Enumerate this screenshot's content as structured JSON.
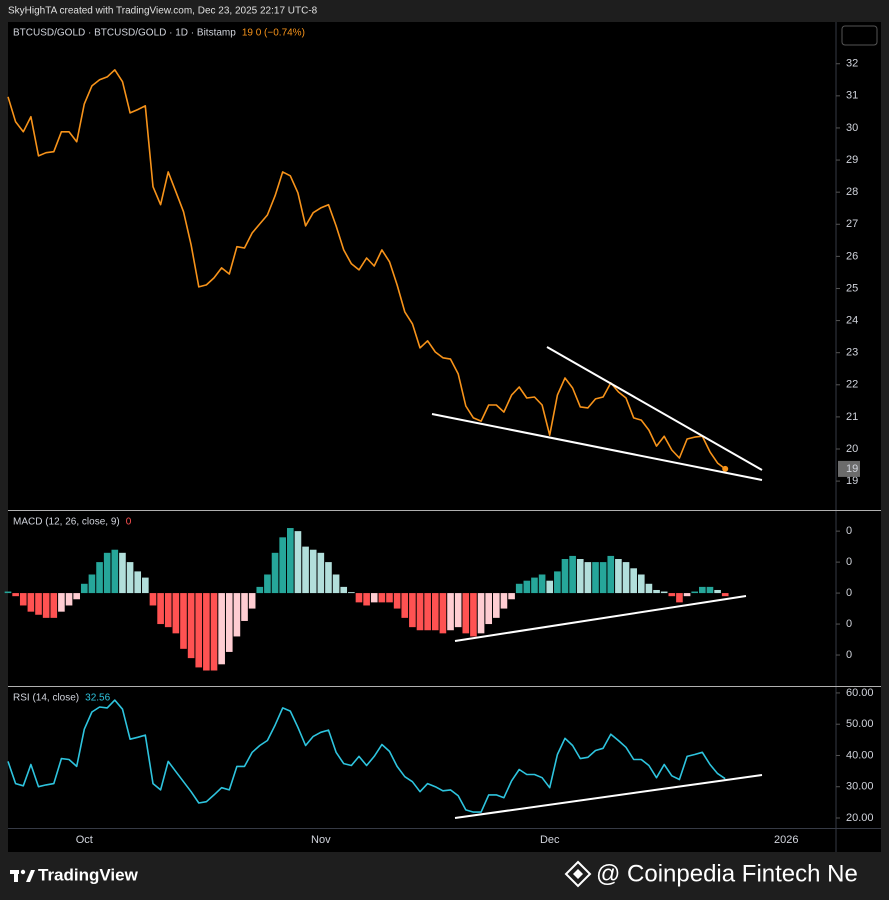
{
  "header": {
    "credit": "SkyHighTA created with TradingView.com, Dec 23, 2025 22:17 UTC-8"
  },
  "chart_data": [
    {
      "type": "line",
      "title": "BTCUSD/GOLD · BTCUSD/GOLD · 1D · Bitstamp",
      "title_value": "19  0 (−0.74%)",
      "color": "#f7931a",
      "price_label": 19,
      "grid": false,
      "categories": [
        null,
        null,
        null,
        null,
        null,
        null,
        null,
        null,
        null,
        null,
        "Oct",
        null,
        null,
        null,
        null,
        null,
        null,
        null,
        null,
        null,
        null,
        null,
        null,
        null,
        null,
        null,
        null,
        null,
        null,
        null,
        null,
        null,
        null,
        null,
        null,
        null,
        null,
        null,
        null,
        null,
        null,
        "Nov",
        null,
        null,
        null,
        null,
        null,
        null,
        null,
        null,
        null,
        null,
        null,
        null,
        null,
        null,
        null,
        null,
        null,
        null,
        null,
        null,
        null,
        null,
        null,
        null,
        null,
        null,
        null,
        null,
        null,
        "Dec",
        null,
        null,
        null,
        null,
        null,
        null,
        null,
        null,
        null,
        null,
        null,
        null,
        null,
        null,
        null,
        null,
        null,
        null,
        null,
        null,
        null,
        null,
        null,
        null,
        null,
        null,
        null,
        null,
        null,
        null,
        "2026"
      ],
      "values": [
        30.97,
        30.19,
        29.88,
        30.35,
        29.13,
        29.23,
        29.26,
        29.88,
        29.88,
        29.57,
        30.75,
        31.31,
        31.5,
        31.59,
        31.81,
        31.44,
        30.47,
        30.57,
        30.69,
        28.17,
        27.61,
        28.63,
        28.01,
        27.39,
        26.36,
        25.05,
        25.11,
        25.33,
        25.64,
        25.45,
        26.3,
        26.26,
        26.73,
        27.01,
        27.29,
        27.89,
        28.63,
        28.51,
        27.98,
        26.95,
        27.36,
        27.51,
        27.61,
        26.95,
        26.2,
        25.77,
        25.58,
        25.95,
        25.7,
        26.2,
        25.83,
        25.11,
        24.27,
        23.9,
        23.15,
        23.37,
        23.02,
        22.84,
        22.8,
        22.34,
        21.34,
        20.97,
        20.87,
        21.37,
        21.37,
        21.15,
        21.68,
        21.93,
        21.59,
        21.62,
        21.37,
        20.43,
        21.68,
        22.21,
        21.9,
        21.31,
        21.28,
        21.56,
        21.62,
        22.06,
        21.78,
        21.59,
        20.97,
        20.9,
        20.59,
        20.09,
        20.4,
        19.97,
        19.72,
        20.31,
        20.37,
        20.4,
        19.91,
        19.56,
        19.38,
        null,
        null,
        null,
        null,
        null,
        null,
        null,
        null
      ],
      "ylim": [
        18.1,
        33.3
      ],
      "yticks": [
        19,
        20,
        21,
        22,
        23,
        24,
        25,
        26,
        27,
        28,
        29,
        30,
        31,
        32
      ]
    },
    {
      "type": "bar",
      "title": "MACD (12, 26, close, 9)",
      "title_value": "0",
      "grid": false,
      "colors": {
        "up_rising": "#26a69a",
        "up_falling": "#b2dfdb",
        "down_falling": "#ff5252",
        "down_rising": "#ffcdd2"
      },
      "values": [
        0.005,
        -0.01,
        -0.04,
        -0.06,
        -0.07,
        -0.08,
        -0.08,
        -0.06,
        -0.04,
        -0.02,
        0.03,
        0.06,
        0.1,
        0.13,
        0.14,
        0.13,
        0.1,
        0.07,
        0.05,
        -0.04,
        -0.1,
        -0.11,
        -0.13,
        -0.18,
        -0.21,
        -0.24,
        -0.25,
        -0.25,
        -0.23,
        -0.19,
        -0.14,
        -0.09,
        -0.05,
        0.02,
        0.06,
        0.13,
        0.18,
        0.21,
        0.2,
        0.15,
        0.14,
        0.13,
        0.1,
        0.06,
        0.02,
        0.003,
        -0.03,
        -0.04,
        -0.03,
        -0.03,
        -0.03,
        -0.05,
        -0.08,
        -0.11,
        -0.12,
        -0.12,
        -0.12,
        -0.13,
        -0.12,
        -0.11,
        -0.13,
        -0.14,
        -0.13,
        -0.1,
        -0.08,
        -0.05,
        -0.02,
        0.03,
        0.04,
        0.05,
        0.06,
        0.04,
        0.07,
        0.11,
        0.12,
        0.11,
        0.1,
        0.1,
        0.1,
        0.12,
        0.11,
        0.1,
        0.08,
        0.06,
        0.03,
        0.01,
        0.005,
        -0.01,
        -0.03,
        -0.01,
        0.005,
        0.02,
        0.02,
        0.01,
        -0.01,
        null,
        null,
        null,
        null,
        null,
        null,
        null,
        null
      ],
      "ylim": [
        -0.3,
        0.265
      ],
      "yticks": [
        {
          "value": 0.2,
          "label": "0"
        },
        {
          "value": 0.1,
          "label": "0"
        },
        {
          "value": 0,
          "label": "0"
        },
        {
          "value": -0.1,
          "label": "0"
        },
        {
          "value": -0.2,
          "label": "0"
        }
      ]
    },
    {
      "type": "line",
      "title": "RSI (14, close)",
      "color": "#2ec4de",
      "grid": false,
      "values": [
        38.1,
        31.0,
        30.3,
        37.1,
        30.0,
        30.6,
        31.0,
        39.0,
        38.7,
        36.5,
        48.4,
        53.9,
        55.5,
        55.2,
        57.7,
        54.8,
        45.2,
        45.8,
        46.5,
        31.0,
        29.0,
        38.1,
        34.8,
        31.6,
        28.4,
        24.8,
        25.2,
        27.4,
        29.7,
        29.0,
        36.5,
        36.5,
        41.0,
        43.2,
        44.8,
        49.7,
        55.2,
        54.2,
        49.0,
        43.2,
        46.1,
        47.4,
        48.1,
        41.0,
        37.4,
        36.8,
        39.7,
        36.8,
        39.7,
        43.5,
        41.3,
        36.5,
        33.2,
        31.6,
        28.4,
        31.0,
        30.0,
        28.7,
        29.0,
        27.1,
        22.6,
        21.9,
        21.9,
        27.4,
        27.4,
        26.5,
        31.9,
        35.5,
        33.9,
        33.9,
        32.9,
        29.7,
        40.3,
        45.5,
        43.2,
        39.0,
        39.4,
        41.6,
        42.3,
        46.8,
        44.8,
        42.6,
        38.7,
        38.7,
        36.8,
        32.9,
        37.1,
        33.5,
        32.3,
        39.7,
        40.3,
        41.0,
        37.1,
        34.2,
        32.56,
        null,
        null,
        null,
        null,
        null,
        null,
        null,
        null
      ],
      "ylim": [
        16.8,
        61.9
      ],
      "yticks": [
        {
          "value": 60,
          "label": "60.00"
        },
        {
          "value": 50,
          "label": "50.00"
        },
        {
          "value": 40,
          "label": "40.00"
        },
        {
          "value": 30,
          "label": "30.00"
        },
        {
          "value": 20,
          "label": "20.00"
        }
      ]
    }
  ],
  "footer": {
    "brand": "TradingView",
    "watermark": "@ Coinpedia Fintech Ne"
  }
}
